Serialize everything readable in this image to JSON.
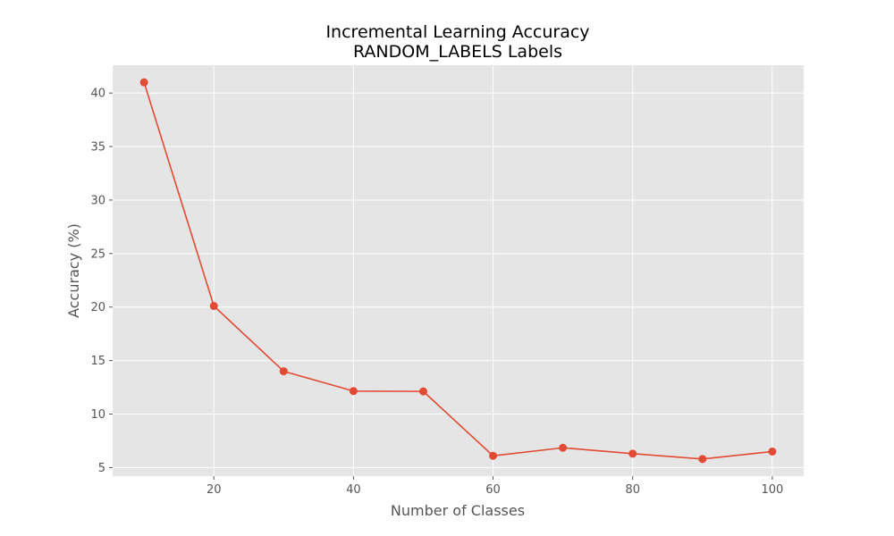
{
  "chart_data": {
    "type": "line",
    "title": "Incremental Learning Accuracy",
    "subtitle": "RANDOM_LABELS Labels",
    "xlabel": "Number of Classes",
    "ylabel": "Accuracy (%)",
    "xlim": [
      5.5,
      104.5
    ],
    "ylim": [
      4.2,
      42.6
    ],
    "xticks": [
      20,
      40,
      60,
      80,
      100
    ],
    "yticks": [
      5,
      10,
      15,
      20,
      25,
      30,
      35,
      40
    ],
    "grid": true,
    "style": "ggplot",
    "colors": {
      "plot_background": "#e5e5e5",
      "grid": "#ffffff",
      "series": "#e24a33",
      "tick": "#555555"
    },
    "series": [
      {
        "x": [
          10,
          20,
          30,
          40,
          50,
          60,
          70,
          80,
          90,
          100
        ],
        "y": [
          41.0,
          20.1,
          14.0,
          12.15,
          12.12,
          6.1,
          6.85,
          6.3,
          5.8,
          6.5
        ],
        "marker": "circle"
      }
    ]
  }
}
